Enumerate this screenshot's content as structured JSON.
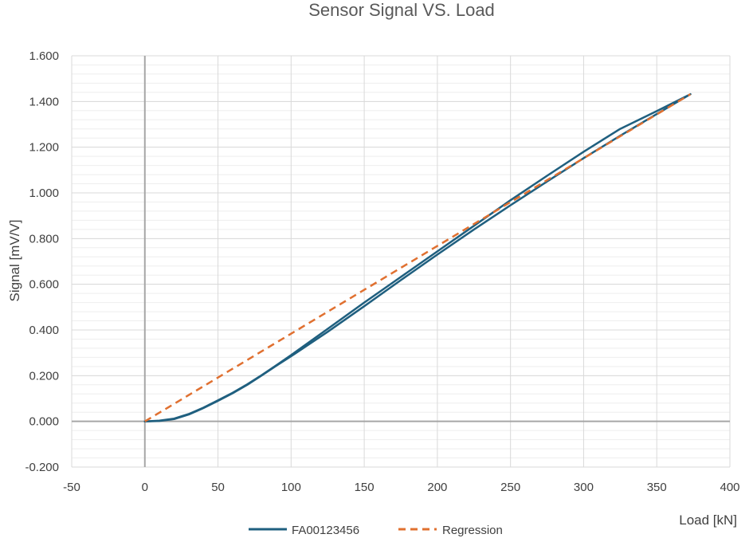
{
  "chart_data": {
    "type": "line",
    "title": "Sensor Signal VS. Load",
    "xlabel": "Load [kN]",
    "ylabel": "Signal [mV/V]",
    "xlim": [
      -50,
      400
    ],
    "ylim": [
      -0.2,
      1.6
    ],
    "x_major_step": 50,
    "y_major_step": 0.2,
    "y_minor_step": 0.04,
    "x_ticks": [
      "-50",
      "0",
      "50",
      "100",
      "150",
      "200",
      "250",
      "300",
      "350",
      "400"
    ],
    "y_ticks": [
      "-0.200",
      "0.000",
      "0.200",
      "0.400",
      "0.600",
      "0.800",
      "1.000",
      "1.200",
      "1.400",
      "1.600"
    ],
    "legend_position": "bottom",
    "series": [
      {
        "name": "FA00123456",
        "color": "#1f5f7f",
        "style": "solid",
        "segments": [
          {
            "x": [
              0,
              10,
              20,
              30,
              40,
              50,
              60,
              70,
              80,
              90,
              100,
              125,
              150,
              175,
              200,
              225,
              250,
              275,
              300,
              325,
              350,
              373
            ],
            "y": [
              0.0,
              0.003,
              0.012,
              0.032,
              0.06,
              0.092,
              0.125,
              0.162,
              0.203,
              0.246,
              0.29,
              0.405,
              0.52,
              0.632,
              0.744,
              0.856,
              0.968,
              1.075,
              1.18,
              1.28,
              1.358,
              1.432
            ]
          },
          {
            "x": [
              373,
              350,
              325,
              300,
              275,
              250,
              225,
              200,
              175,
              150,
              125,
              100,
              90,
              80,
              70,
              60,
              50,
              40,
              30,
              20,
              10,
              0
            ],
            "y": [
              1.432,
              1.345,
              1.25,
              1.152,
              1.05,
              0.946,
              0.84,
              0.73,
              0.618,
              0.504,
              0.392,
              0.285,
              0.244,
              0.201,
              0.16,
              0.123,
              0.09,
              0.058,
              0.03,
              0.01,
              0.002,
              0.0
            ]
          }
        ]
      },
      {
        "name": "Regression",
        "color": "#e07030",
        "style": "dashed",
        "segments": [
          {
            "x": [
              0,
              373
            ],
            "y": [
              0.0,
              1.432
            ]
          }
        ]
      }
    ]
  }
}
